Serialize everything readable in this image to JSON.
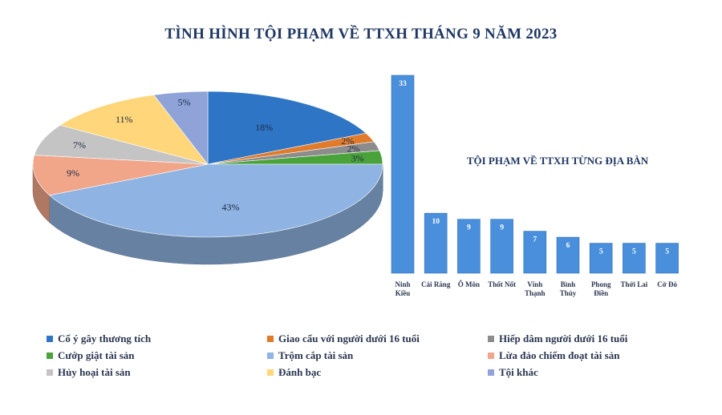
{
  "title": "TÌNH HÌNH TỘI PHẠM VỀ TTXH THÁNG 9 NĂM 2023",
  "chart_data": [
    {
      "type": "pie",
      "categories": [
        "Cố ý gây thương tích",
        "Giao cấu với người dưới 16 tuổi",
        "Hiếp dâm người dưới 16 tuổi",
        "Cướp giật tài sản",
        "Trộm cắp tài sản",
        "Lừa đảo chiếm đoạt tài sản",
        "Hủy hoại tài sản",
        "Đánh bạc",
        "Tội khác"
      ],
      "values": [
        18,
        2,
        2,
        3,
        43,
        9,
        7,
        11,
        5
      ],
      "labels": [
        "18%",
        "2%",
        "2%",
        "3%",
        "43%",
        "9%",
        "7%",
        "11%",
        "5%"
      ],
      "colors": [
        "#2e75c6",
        "#e07b2c",
        "#8c8c8c",
        "#4aa23a",
        "#8fb3e2",
        "#f1a68a",
        "#c4c4c4",
        "#ffd67a",
        "#8fa3d8"
      ],
      "legend_position": "bottom"
    },
    {
      "type": "bar",
      "title": "TỘI PHẠM VỀ TTXH TỪNG ĐỊA BÀN",
      "categories": [
        "Ninh Kiều",
        "Cái Răng",
        "Ô Môn",
        "Thốt Nốt",
        "Vĩnh Thạnh",
        "Bình Thủy",
        "Phong Điền",
        "Thới Lai",
        "Cờ Đỏ"
      ],
      "category_lines": [
        [
          "Ninh",
          "Kiều"
        ],
        [
          "Cái Răng"
        ],
        [
          "Ô Môn"
        ],
        [
          "Thốt Nốt"
        ],
        [
          "Vĩnh",
          "Thạnh"
        ],
        [
          "Bình",
          "Thủy"
        ],
        [
          "Phong",
          "Điền"
        ],
        [
          "Thới Lai"
        ],
        [
          "Cờ Đỏ"
        ]
      ],
      "values": [
        33,
        10,
        9,
        9,
        7,
        6,
        5,
        5,
        5
      ],
      "ylim": [
        0,
        33
      ],
      "grid": false,
      "color": "#4a8fdb"
    }
  ]
}
